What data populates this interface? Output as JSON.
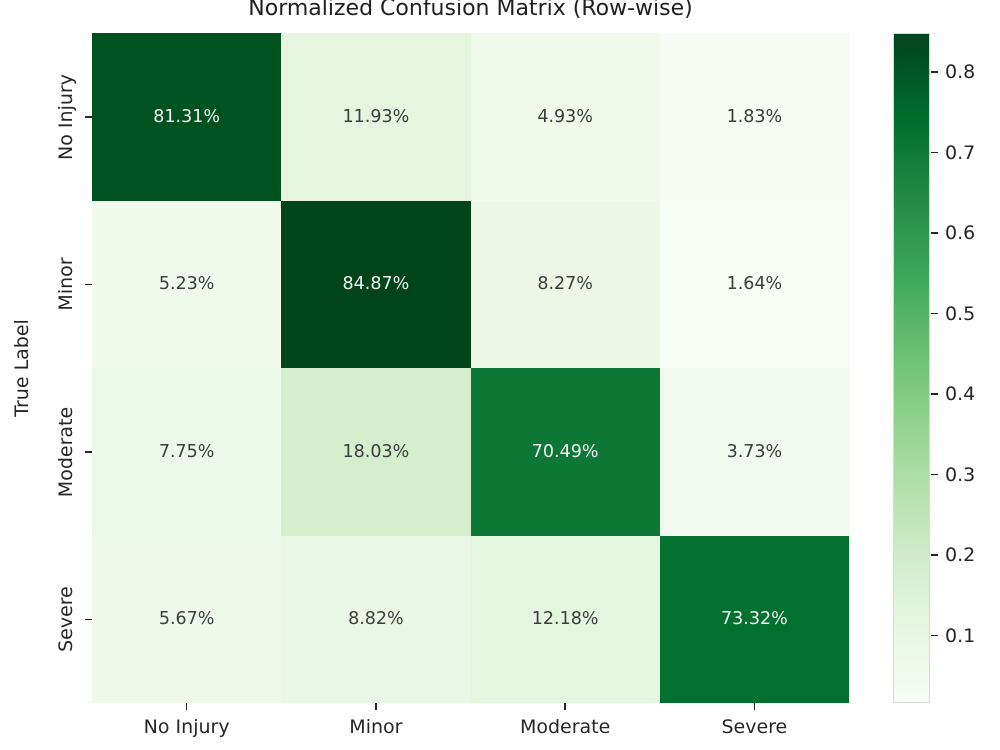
{
  "title": "Normalized Confusion Matrix (Row-wise)",
  "axes": {
    "ylabel": "True Label",
    "y_tick_labels": [
      "No Injury",
      "Minor",
      "Moderate",
      "Severe"
    ],
    "x_tick_labels": [
      "No Injury",
      "Minor",
      "Moderate",
      "Severe"
    ]
  },
  "colorbar": {
    "tick_values": [
      0.8,
      0.7,
      0.6,
      0.5,
      0.4,
      0.3,
      0.2,
      0.1
    ],
    "tick_labels": [
      "0.8",
      "0.7",
      "0.6",
      "0.5",
      "0.4",
      "0.3",
      "0.2",
      "0.1"
    ],
    "gradient_stops_bottom_to_top": [
      "#f7fcf5",
      "#e5f5e0",
      "#c7e9c0",
      "#a1d99b",
      "#74c476",
      "#41ab5d",
      "#238b45",
      "#006d2c",
      "#00441b"
    ]
  },
  "chart_data": {
    "type": "heatmap",
    "title": "Normalized Confusion Matrix (Row-wise)",
    "xlabel": "",
    "ylabel": "True Label",
    "rows": [
      "No Injury",
      "Minor",
      "Moderate",
      "Severe"
    ],
    "columns": [
      "No Injury",
      "Minor",
      "Moderate",
      "Severe"
    ],
    "values_percent": [
      [
        81.31,
        11.93,
        4.93,
        1.83
      ],
      [
        5.23,
        84.87,
        8.27,
        1.64
      ],
      [
        7.75,
        18.03,
        70.49,
        3.73
      ],
      [
        5.67,
        8.82,
        12.18,
        73.32
      ]
    ],
    "cell_labels": [
      [
        "81.31%",
        "11.93%",
        "4.93%",
        "1.83%"
      ],
      [
        "5.23%",
        "84.87%",
        "8.27%",
        "1.64%"
      ],
      [
        "7.75%",
        "18.03%",
        "70.49%",
        "3.73%"
      ],
      [
        "5.67%",
        "8.82%",
        "12.18%",
        "73.32%"
      ]
    ],
    "colormap": "Greens",
    "colorbar_ticks": [
      0.1,
      0.2,
      0.3,
      0.4,
      0.5,
      0.6,
      0.7,
      0.8
    ],
    "vmin": 0.0164,
    "vmax": 0.8487,
    "grid": false,
    "legend_position": "right-colorbar"
  },
  "cell_colors": [
    [
      "#005221",
      "#e5f5e0",
      "#f0f9ec",
      "#f6fcf4"
    ],
    [
      "#eff9ec",
      "#00441b",
      "#ecf7e8",
      "#f7fcf5"
    ],
    [
      "#ecf8e9",
      "#d4eece",
      "#0d7836",
      "#f2faef"
    ],
    [
      "#eef9eb",
      "#ebf7e6",
      "#e4f5e0",
      "#04702f"
    ]
  ],
  "cell_text_colors": [
    [
      "#f2f2f2",
      "#3d3d3d",
      "#3d3d3d",
      "#3d3d3d"
    ],
    [
      "#3d3d3d",
      "#f2f2f2",
      "#3d3d3d",
      "#3d3d3d"
    ],
    [
      "#3d3d3d",
      "#3d3d3d",
      "#f2f2f2",
      "#3d3d3d"
    ],
    [
      "#3d3d3d",
      "#3d3d3d",
      "#3d3d3d",
      "#f2f2f2"
    ]
  ]
}
